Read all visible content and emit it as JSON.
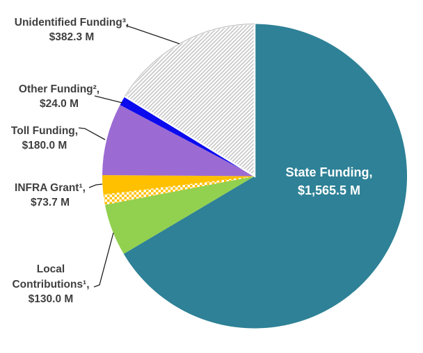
{
  "chart_data": {
    "type": "pie",
    "start_angle_deg": 0,
    "direction": "clockwise",
    "legend": "none",
    "labels_color": "#3F3F3F",
    "inside_label_color": "#FFFFFF",
    "leader_line_color": "#1F1F1F",
    "slices": [
      {
        "name": "State Funding",
        "label": "State Funding,",
        "value": 1565.5,
        "value_label": "$1,565.5 M",
        "color": "#2E8196",
        "label_placement": "inside"
      },
      {
        "name": "Local Contributions",
        "label": "Local Contributions¹,",
        "value": 130.0,
        "value_label": "$130.0 M",
        "color": "#92D050",
        "label_placement": "outside"
      },
      {
        "name": "INFRA Grant",
        "label": "INFRA Grant¹,",
        "value": 73.7,
        "value_label": "$73.7 M",
        "color": "#FFC000",
        "overlay_pattern": "checker",
        "overlay_fraction": 0.35,
        "overlay_colors": [
          "#FFC000",
          "#FFFFFF"
        ],
        "label_placement": "outside"
      },
      {
        "name": "Toll Funding",
        "label": "Toll Funding,",
        "value": 180.0,
        "value_label": "$180.0 M",
        "color": "#9B6BD3",
        "label_placement": "outside"
      },
      {
        "name": "Other Funding",
        "label": "Other Funding²,",
        "value": 24.0,
        "value_label": "$24.0 M",
        "color": "#0B0BEE",
        "label_placement": "outside"
      },
      {
        "name": "Unidentified Funding",
        "label": "Unidentified Funding³,",
        "value": 382.3,
        "value_label": "$382.3 M",
        "color": "#FFFFFF",
        "pattern": "hatch",
        "hatch_line_color": "#C9C9C9",
        "outline_color": "#B5B5B5",
        "label_placement": "outside"
      }
    ]
  }
}
